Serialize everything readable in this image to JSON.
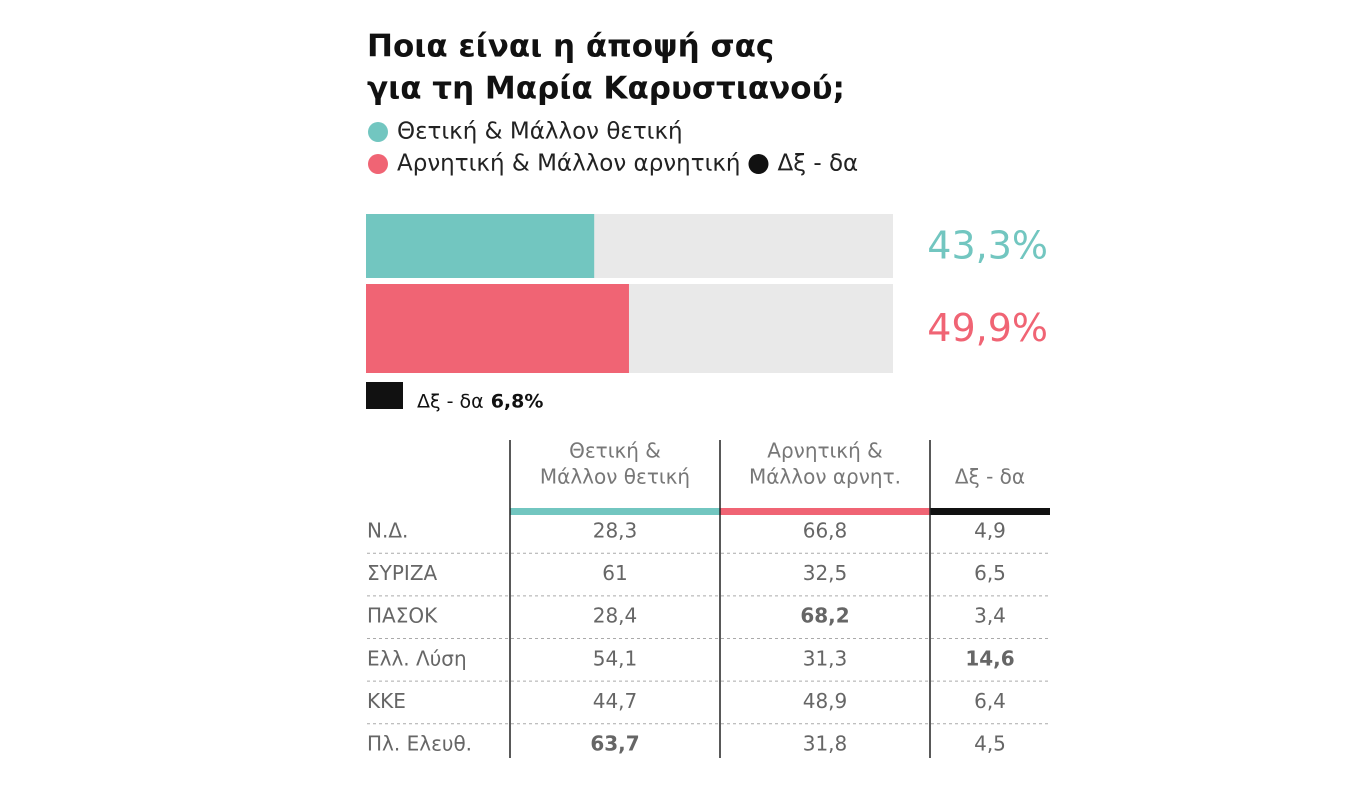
{
  "chart_data": {
    "type": "hbar",
    "title": [
      "Ποια είναι η άποψή σας",
      "για τη Μαρία Καρυστιανού;"
    ],
    "xlim": [
      0,
      100
    ],
    "series": [
      {
        "name": "Θετική & Μάλλον θετική",
        "color": "#72c6c0",
        "values": [
          43.3
        ],
        "value_labels": [
          "43,3%"
        ]
      },
      {
        "name": "Αρνητική & Μάλλον αρνητική",
        "color": "#f06474",
        "values": [
          49.9
        ],
        "value_labels": [
          "49,9%"
        ]
      },
      {
        "name": "Δξ - δα",
        "color": "#111111",
        "values": [
          6.8
        ],
        "value_labels": [
          "6,8%"
        ]
      }
    ]
  },
  "table": {
    "columns": [
      {
        "lines": [
          "Θετική &",
          "Μάλλον θετική"
        ],
        "color": "#72c6c0"
      },
      {
        "lines": [
          "Αρνητική &",
          "Μάλλον αρνητ."
        ],
        "color": "#f06474"
      },
      {
        "lines": [
          "Δξ - δα"
        ],
        "color": "#111111"
      }
    ],
    "rows": [
      {
        "label": "Ν.Δ.",
        "cells": [
          "28,3",
          "66,8",
          "4,9"
        ]
      },
      {
        "label": "ΣΥΡΙΖΑ",
        "cells": [
          "61",
          "32,5",
          "6,5"
        ]
      },
      {
        "label": "ΠΑΣΟΚ",
        "cells": [
          "28,4",
          {
            "text": "68,2",
            "bold": true
          },
          "3,4"
        ]
      },
      {
        "label": "Ελλ. Λύση",
        "cells": [
          "54,1",
          "31,3",
          {
            "text": "14,6",
            "bold": true
          }
        ]
      },
      {
        "label": "ΚΚΕ",
        "cells": [
          "44,7",
          "48,9",
          "6,4"
        ]
      },
      {
        "label": "Πλ. Ελευθ.",
        "cells": [
          {
            "text": "63,7",
            "bold": true
          },
          "31,8",
          "4,5"
        ]
      }
    ]
  }
}
